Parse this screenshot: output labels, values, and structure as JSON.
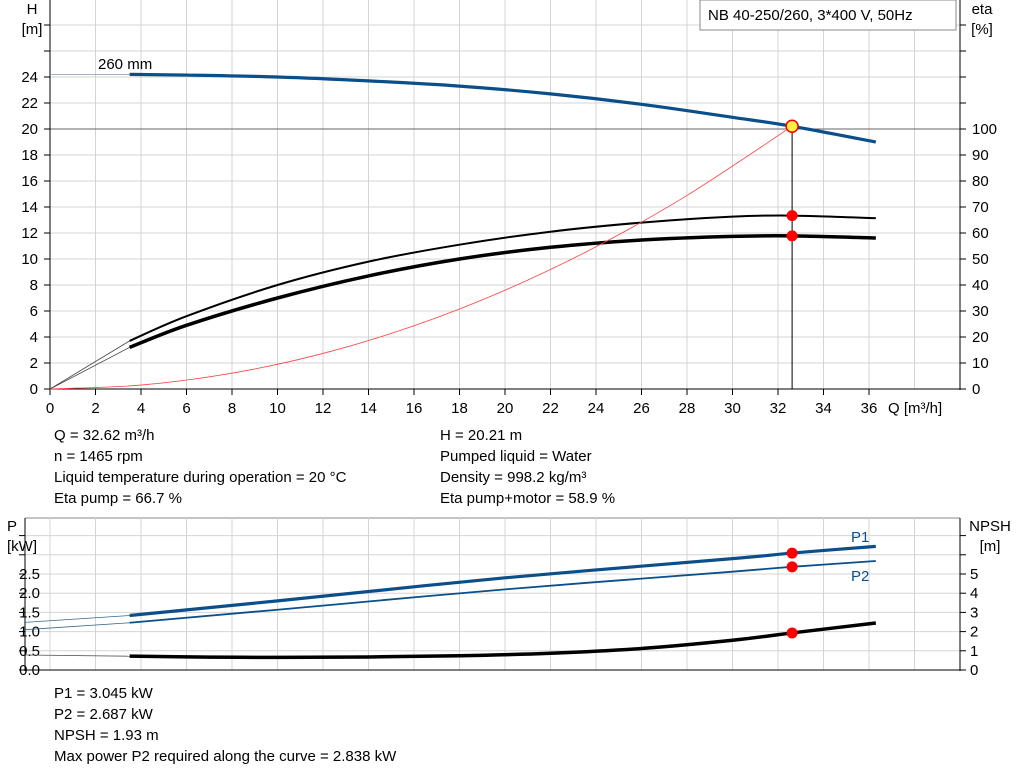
{
  "chart_data": [
    {
      "type": "line",
      "title": "NB 40-250/260, 3*400 V, 50Hz",
      "xlabel": "Q [m³/h]",
      "ylabel_left": "H\n[m]",
      "ylabel_right": "eta\n[%]",
      "xlim": [
        0,
        40
      ],
      "ylim_left": [
        0,
        30
      ],
      "ylim_right": [
        0,
        100
      ],
      "x_ticks": [
        0,
        2,
        4,
        6,
        8,
        10,
        12,
        14,
        16,
        18,
        20,
        22,
        24,
        26,
        28,
        30,
        32,
        34,
        36
      ],
      "y_ticks_left": [
        0,
        2,
        4,
        6,
        8,
        10,
        12,
        14,
        16,
        18,
        20,
        22,
        24
      ],
      "y_ticks_right": [
        0,
        10,
        20,
        30,
        40,
        50,
        60,
        70,
        80,
        90,
        100
      ],
      "grid": true,
      "annotations": [
        "260 mm"
      ],
      "series": [
        {
          "key": "H",
          "axis": "left",
          "color": "#0b4f8a",
          "x": [
            3.5,
            6,
            10,
            14,
            18,
            22,
            26,
            30,
            32.62,
            36.3
          ],
          "y": [
            24.2,
            24.15,
            24.0,
            23.7,
            23.3,
            22.7,
            21.9,
            20.9,
            20.21,
            19.0
          ],
          "extension": {
            "x": [
              0,
              3.5
            ],
            "y": [
              24.2,
              24.2
            ]
          }
        },
        {
          "key": "eta_pump",
          "axis": "right",
          "color": "#000000",
          "x": [
            3.5,
            6,
            10,
            14,
            18,
            22,
            26,
            30,
            32.62,
            36.3
          ],
          "y": [
            18.5,
            28,
            40,
            49,
            55.5,
            60.5,
            64,
            66.3,
            66.7,
            65.7
          ],
          "extension": {
            "x": [
              0,
              3.5
            ],
            "y": [
              0,
              18.5
            ]
          }
        },
        {
          "key": "eta_pump_motor",
          "axis": "right",
          "color": "#000000",
          "x": [
            3.5,
            6,
            10,
            14,
            18,
            22,
            26,
            30,
            32.62,
            36.3
          ],
          "y": [
            16,
            24.5,
            35,
            43.5,
            50,
            54.5,
            57.3,
            58.7,
            58.9,
            58.1
          ],
          "extension": {
            "x": [
              0,
              3.5
            ],
            "y": [
              0,
              16
            ]
          }
        },
        {
          "key": "system",
          "axis": "left",
          "color": "#ff4040",
          "x": [
            0,
            4,
            8,
            12,
            16,
            20,
            24,
            28,
            32.62
          ],
          "y": [
            0,
            0.304,
            1.216,
            2.735,
            4.863,
            7.598,
            10.94,
            14.89,
            20.21
          ]
        }
      ],
      "duty_points": [
        {
          "x": 32.62,
          "H": 20.21
        },
        {
          "x": 32.62,
          "eta": 66.7
        },
        {
          "x": 32.62,
          "eta": 58.9
        }
      ]
    },
    {
      "type": "line",
      "ylabel_left": "P\n[kW]",
      "ylabel_right": "NPSH\n[m]",
      "ylim_left": [
        0,
        3.96
      ],
      "ylim_right": [
        0,
        7.92
      ],
      "y_ticks_left": [
        "0.0",
        "0.5",
        "1.0",
        "1.5",
        "2.0",
        "2.5"
      ],
      "y_ticks_right": [
        0,
        1,
        2,
        3,
        4,
        5
      ],
      "grid": true,
      "series": [
        {
          "name": "P1",
          "axis": "left",
          "color": "#0b4f8a",
          "x": [
            3.5,
            10,
            20,
            30,
            32.62,
            36.3
          ],
          "y": [
            1.42,
            1.8,
            2.4,
            2.9,
            3.045,
            3.22
          ],
          "extension": {
            "x": [
              -1.1,
              3.5
            ],
            "y": [
              1.24,
              1.42
            ]
          }
        },
        {
          "name": "P2",
          "axis": "left",
          "color": "#0b4f8a",
          "x": [
            3.5,
            10,
            20,
            30,
            32.62,
            36.3
          ],
          "y": [
            1.23,
            1.57,
            2.1,
            2.56,
            2.687,
            2.838
          ],
          "extension": {
            "x": [
              -1.1,
              3.5
            ],
            "y": [
              1.05,
              1.23
            ]
          }
        },
        {
          "key": "NPSH",
          "axis": "right",
          "color": "#000000",
          "x": [
            3.5,
            7,
            10,
            14,
            18,
            22,
            26,
            30,
            32.62,
            36.3
          ],
          "y": [
            0.72,
            0.67,
            0.66,
            0.68,
            0.74,
            0.87,
            1.12,
            1.55,
            1.93,
            2.45
          ],
          "extension": {
            "x": [
              -1.1,
              3.5
            ],
            "y": [
              0.78,
              0.72
            ]
          }
        }
      ],
      "duty_points": [
        {
          "x": 32.62,
          "P1": 3.045
        },
        {
          "x": 32.62,
          "P2": 2.687
        },
        {
          "x": 32.62,
          "NPSH": 1.93
        }
      ]
    }
  ],
  "info_top": {
    "q": "Q = 32.62 m³/h",
    "n": "n = 1465 rpm",
    "temp": "Liquid temperature during operation = 20 °C",
    "eta": "Eta pump = 66.7 %",
    "h": "H = 20.21 m",
    "liquid": "Pumped liquid = Water",
    "density": "Density = 998.2 kg/m³",
    "eta_pm": "Eta pump+motor = 58.9 %"
  },
  "info_bottom": {
    "p1": "P1 = 3.045 kW",
    "p2": "P2 = 2.687 kW",
    "npsh": "NPSH = 1.93 m",
    "max": "Max power P2 required along the curve = 2.838 kW"
  }
}
